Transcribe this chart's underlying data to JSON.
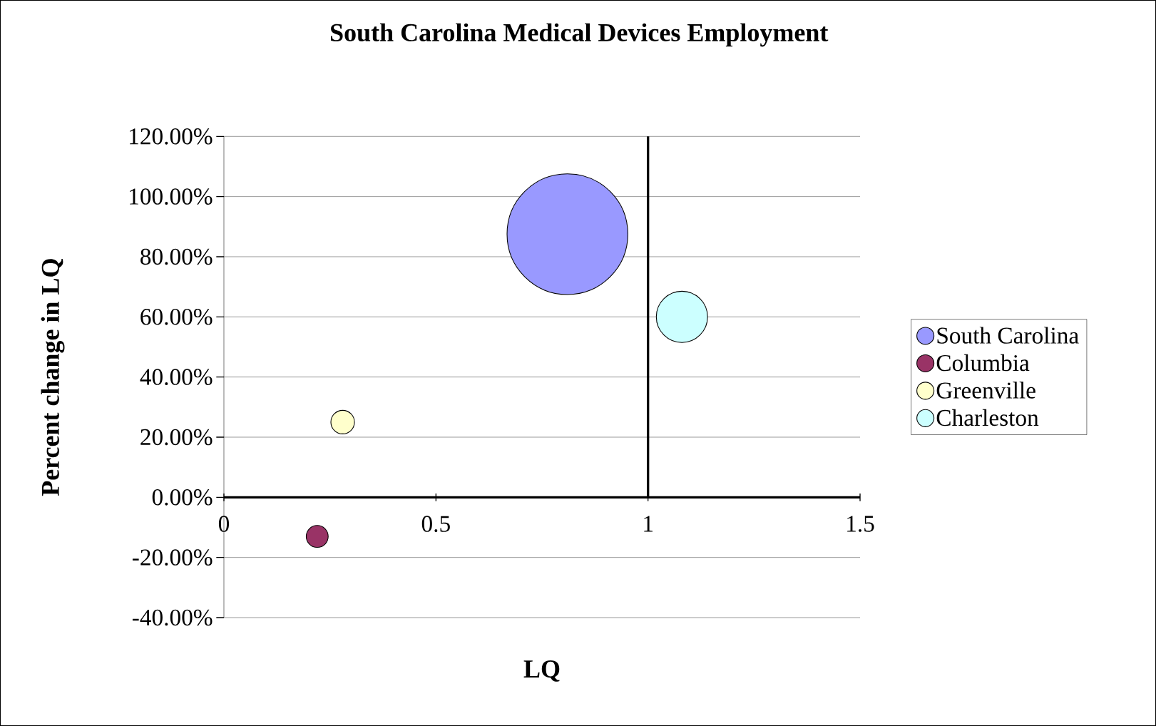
{
  "chart_data": {
    "type": "bubble",
    "title": "South Carolina Medical Devices Employment",
    "xlabel": "LQ",
    "ylabel": "Percent change in LQ",
    "series": [
      {
        "name": "South Carolina",
        "color": "#9999ff",
        "x": [
          0.81
        ],
        "values": [
          87.5
        ],
        "sizes": [
          1
        ]
      },
      {
        "name": "Columbia",
        "color": "#993366",
        "x": [
          0.22
        ],
        "values": [
          -13
        ],
        "sizes": [
          0.033
        ]
      },
      {
        "name": "Greenville",
        "color": "#ffffcc",
        "x": [
          0.28
        ],
        "values": [
          25
        ],
        "sizes": [
          0.038
        ]
      },
      {
        "name": "Charleston",
        "color": "#ccffff",
        "x": [
          1.08
        ],
        "values": [
          60
        ],
        "sizes": [
          0.18
        ]
      }
    ],
    "xlim": [
      0,
      1.5
    ],
    "xticks": [
      0,
      0.5,
      1,
      1.5
    ],
    "ylim": [
      -40,
      120
    ],
    "yticks": [
      {
        "value": -40,
        "label": "-40.00%"
      },
      {
        "value": -20,
        "label": "-20.00%"
      },
      {
        "value": 0,
        "label": "0.00%"
      },
      {
        "value": 20,
        "label": "20.00%"
      },
      {
        "value": 40,
        "label": "40.00%"
      },
      {
        "value": 60,
        "label": "60.00%"
      },
      {
        "value": 80,
        "label": "80.00%"
      },
      {
        "value": 100,
        "label": "100.00%"
      },
      {
        "value": 120,
        "label": "120.00%"
      }
    ],
    "grid": "y",
    "legend": "right",
    "ref_lines": [
      {
        "axis": "x",
        "value": 1,
        "color": "#000000"
      }
    ]
  }
}
